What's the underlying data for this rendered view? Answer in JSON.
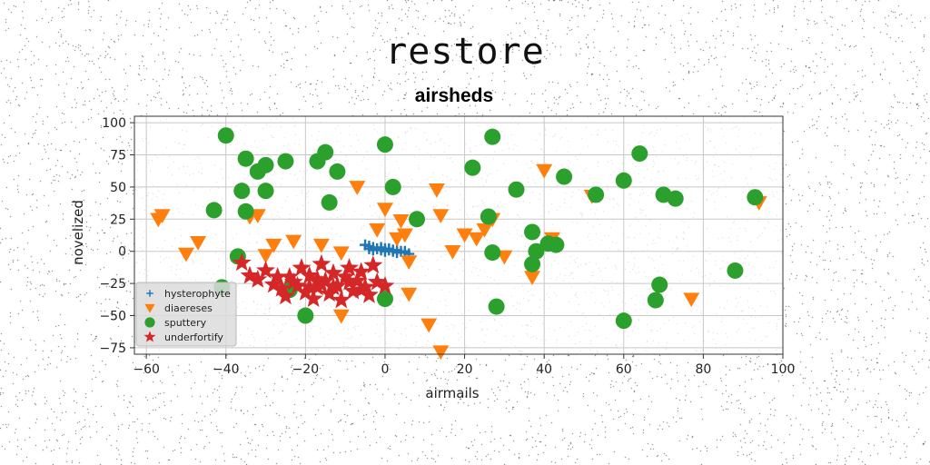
{
  "page": {
    "suptitle": "restore"
  },
  "chart_data": {
    "type": "scatter",
    "title": "airsheds",
    "xlabel": "airmails",
    "ylabel": "novelized",
    "xlim": [
      -63,
      100
    ],
    "ylim": [
      -80,
      105
    ],
    "xticks": [
      -60,
      -40,
      -20,
      0,
      20,
      40,
      60,
      80,
      100
    ],
    "yticks": [
      -75,
      -50,
      -25,
      0,
      25,
      50,
      75,
      100
    ],
    "grid": true,
    "legend_position": "lower-left",
    "series": [
      {
        "name": "hysterophyte",
        "marker": "plus",
        "color": "#1f77b4",
        "points": [
          [
            -5,
            5
          ],
          [
            -4,
            4
          ],
          [
            -3,
            3
          ],
          [
            -2,
            2
          ],
          [
            -1,
            1
          ],
          [
            0,
            0
          ],
          [
            1,
            1
          ],
          [
            2,
            0
          ],
          [
            3,
            -1
          ],
          [
            4,
            0
          ],
          [
            5,
            -1
          ],
          [
            6,
            -2
          ],
          [
            -3,
            1
          ],
          [
            -1,
            3
          ],
          [
            1,
            2
          ],
          [
            3,
            1
          ],
          [
            5,
            0
          ],
          [
            -4,
            2
          ],
          [
            0,
            2
          ],
          [
            2,
            1
          ]
        ]
      },
      {
        "name": "diaereses",
        "marker": "triangle-down",
        "color": "#ff7f0e",
        "points": [
          [
            -57,
            25
          ],
          [
            -56,
            28
          ],
          [
            -50,
            -2
          ],
          [
            -47,
            7
          ],
          [
            -34,
            27
          ],
          [
            -32,
            28
          ],
          [
            -30,
            -3
          ],
          [
            -28,
            5
          ],
          [
            -23,
            8
          ],
          [
            -16,
            5
          ],
          [
            -11,
            -1
          ],
          [
            -11,
            -50
          ],
          [
            -7,
            50
          ],
          [
            -2,
            17
          ],
          [
            0,
            33
          ],
          [
            3,
            10
          ],
          [
            4,
            24
          ],
          [
            5,
            13
          ],
          [
            6,
            -8
          ],
          [
            6,
            -33
          ],
          [
            11,
            -57
          ],
          [
            13,
            48
          ],
          [
            14,
            -78
          ],
          [
            14,
            28
          ],
          [
            17,
            0
          ],
          [
            20,
            13
          ],
          [
            23,
            10
          ],
          [
            25,
            17
          ],
          [
            27,
            25
          ],
          [
            30,
            -4
          ],
          [
            37,
            -20
          ],
          [
            40,
            63
          ],
          [
            42,
            10
          ],
          [
            52,
            43
          ],
          [
            77,
            -37
          ],
          [
            94,
            38
          ]
        ]
      },
      {
        "name": "sputtery",
        "marker": "circle",
        "color": "#2ca02c",
        "points": [
          [
            -40,
            90
          ],
          [
            -36,
            47
          ],
          [
            -35,
            31
          ],
          [
            -35,
            72
          ],
          [
            -32,
            62
          ],
          [
            -30,
            67
          ],
          [
            -30,
            47
          ],
          [
            -25,
            70
          ],
          [
            -24,
            -30
          ],
          [
            -20,
            -50
          ],
          [
            -17,
            70
          ],
          [
            -15,
            77
          ],
          [
            -14,
            38
          ],
          [
            -12,
            62
          ],
          [
            0,
            83
          ],
          [
            2,
            50
          ],
          [
            8,
            25
          ],
          [
            22,
            65
          ],
          [
            26,
            27
          ],
          [
            27,
            89
          ],
          [
            27,
            -1
          ],
          [
            28,
            -43
          ],
          [
            33,
            48
          ],
          [
            37,
            15
          ],
          [
            37,
            -10
          ],
          [
            38,
            0
          ],
          [
            41,
            6
          ],
          [
            43,
            5
          ],
          [
            45,
            58
          ],
          [
            53,
            44
          ],
          [
            60,
            55
          ],
          [
            60,
            -54
          ],
          [
            64,
            76
          ],
          [
            68,
            -38
          ],
          [
            69,
            -26
          ],
          [
            70,
            44
          ],
          [
            73,
            41
          ],
          [
            88,
            -15
          ],
          [
            93,
            42
          ],
          [
            0,
            -37
          ],
          [
            -41,
            -28
          ],
          [
            -37,
            -4
          ],
          [
            -43,
            32
          ]
        ]
      },
      {
        "name": "underfortify",
        "marker": "star",
        "color": "#d62728",
        "points": [
          [
            -36,
            -9
          ],
          [
            -34,
            -19
          ],
          [
            -32,
            -22
          ],
          [
            -30,
            -15
          ],
          [
            -28,
            -26
          ],
          [
            -26,
            -29
          ],
          [
            -25,
            -35
          ],
          [
            -24,
            -20
          ],
          [
            -22,
            -27
          ],
          [
            -21,
            -13
          ],
          [
            -20,
            -32
          ],
          [
            -19,
            -19
          ],
          [
            -18,
            -37
          ],
          [
            -17,
            -28
          ],
          [
            -16,
            -10
          ],
          [
            -15,
            -23
          ],
          [
            -14,
            -33
          ],
          [
            -13,
            -17
          ],
          [
            -12,
            -27
          ],
          [
            -11,
            -38
          ],
          [
            -10,
            -20
          ],
          [
            -9,
            -13
          ],
          [
            -8,
            -31
          ],
          [
            -7,
            -23
          ],
          [
            -6,
            -16
          ],
          [
            -5,
            -28
          ],
          [
            -4,
            -34
          ],
          [
            -3,
            -11
          ],
          [
            -2,
            -24
          ],
          [
            0,
            -27
          ],
          [
            -23,
            -24
          ],
          [
            -19,
            -28
          ],
          [
            -16,
            -26
          ],
          [
            -13,
            -28
          ],
          [
            -9,
            -24
          ],
          [
            -6,
            -30
          ],
          [
            -17,
            -22
          ],
          [
            -27,
            -20
          ]
        ]
      }
    ]
  }
}
